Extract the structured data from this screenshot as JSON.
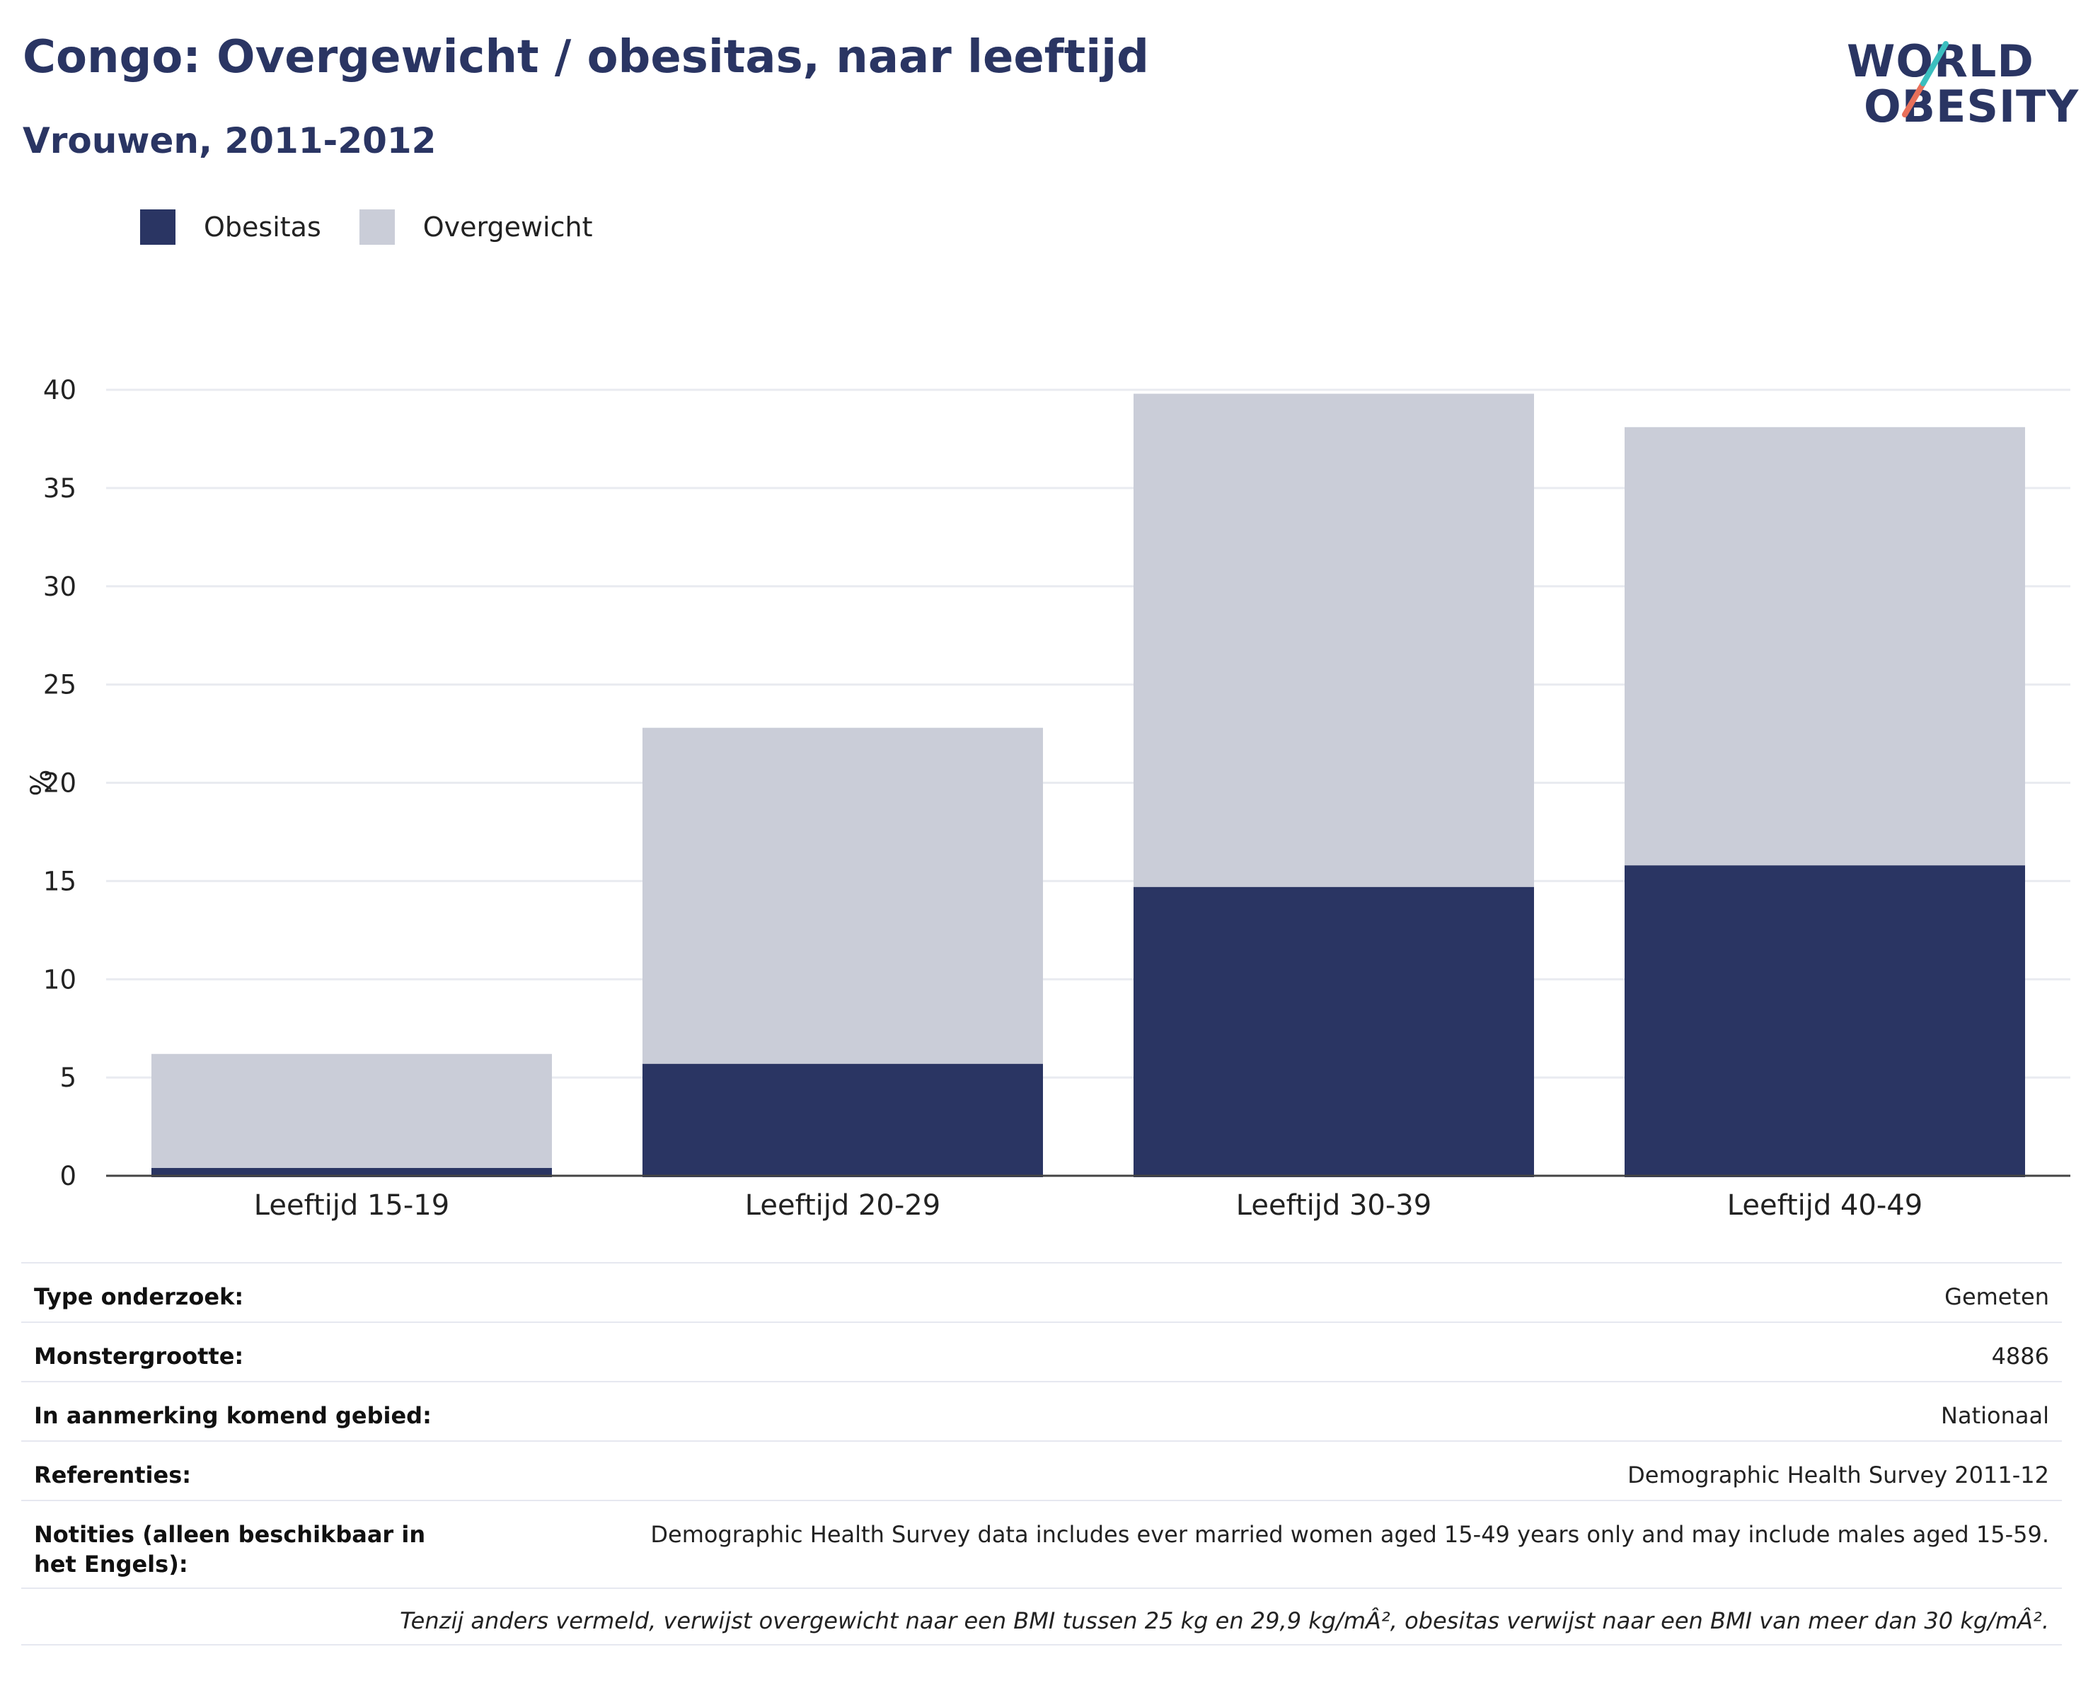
{
  "header": {
    "title": "Congo: Overgewicht / obesitas, naar leeftijd",
    "subtitle": "Vrouwen, 2011-2012"
  },
  "logo": {
    "line1": "WORLD",
    "line2": "OBESITY",
    "colors": [
      "#2a3563",
      "#e8705a",
      "#3bbfbf"
    ]
  },
  "legend": [
    {
      "label": "Obesitas",
      "color": "#2a3563"
    },
    {
      "label": "Overgewicht",
      "color": "#cacdd8"
    }
  ],
  "chart_data": {
    "type": "bar",
    "stacked": true,
    "categories": [
      "Leeftijd 15-19",
      "Leeftijd 20-29",
      "Leeftijd 30-39",
      "Leeftijd 40-49"
    ],
    "series": [
      {
        "name": "Obesitas",
        "color": "#2a3563",
        "values": [
          0.4,
          5.7,
          14.7,
          15.8
        ]
      },
      {
        "name": "Overgewicht",
        "color": "#cacdd8",
        "values": [
          5.8,
          17.1,
          25.1,
          22.3
        ]
      }
    ],
    "ylabel": "%",
    "ylim": [
      0,
      40
    ],
    "yticks": [
      0,
      5,
      10,
      15,
      20,
      25,
      30,
      35,
      40
    ],
    "grid": true,
    "legend_position": "top-left"
  },
  "info": {
    "rows": [
      {
        "label": "Type onderzoek:",
        "value": "Gemeten"
      },
      {
        "label": "Monstergrootte:",
        "value": "4886"
      },
      {
        "label": "In aanmerking komend gebied:",
        "value": "Nationaal"
      },
      {
        "label": "Referenties:",
        "value": "Demographic Health Survey 2011-12"
      },
      {
        "label": "Notities (alleen beschikbaar in het Engels):",
        "value": "Demographic Health Survey data includes ever married women aged 15-49 years only and may include males aged 15-59."
      }
    ],
    "footnote": "Tenzij anders vermeld, verwijst overgewicht naar een BMI tussen 25 kg en 29,9 kg/mÂ², obesitas verwijst naar een BMI van meer dan 30 kg/mÂ²."
  }
}
